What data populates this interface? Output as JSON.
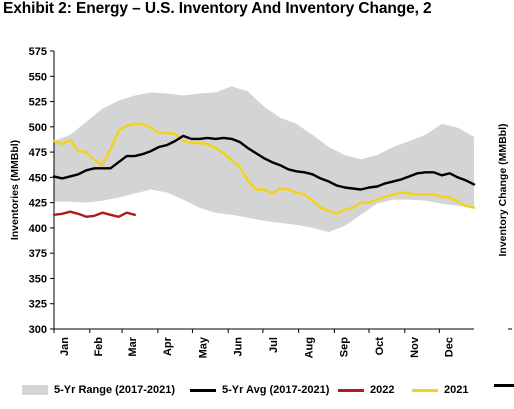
{
  "title": "Exhibit 2: Energy – U.S. Inventory And Inventory Change, 2",
  "colors": {
    "range_fill": "#d4d4d4",
    "avg_line": "#000000",
    "line_2022": "#b01c1c",
    "line_2021": "#f2d21a"
  },
  "chart_data": {
    "type": "line",
    "title": "",
    "ylabel": "Inventories (MMBbl)",
    "y2label": "Inventory Change (MMBbl)",
    "ylim": [
      300,
      575
    ],
    "yticks": [
      300,
      325,
      350,
      375,
      400,
      425,
      450,
      475,
      500,
      525,
      550,
      575
    ],
    "xlim": [
      0,
      52
    ],
    "months": [
      "Jan",
      "Feb",
      "Mar",
      "Apr",
      "May",
      "Jun",
      "Jul",
      "Aug",
      "Sep",
      "Oct",
      "Nov",
      "Dec"
    ],
    "month_positions": [
      0,
      4.43,
      8.43,
      12.86,
      17.14,
      21.57,
      25.86,
      30.29,
      34.71,
      39,
      43.43,
      47.71
    ],
    "grid": false,
    "legend_position": "bottom",
    "series": [
      {
        "name": "5-Yr Range (2017-2021)",
        "kind": "range",
        "x": [
          0,
          2,
          4,
          6,
          8,
          10,
          12,
          14,
          16,
          18,
          20,
          22,
          24,
          26,
          28,
          30,
          32,
          34,
          36,
          38,
          40,
          42,
          44,
          46,
          48,
          50,
          52
        ],
        "upper": [
          486,
          492,
          505,
          518,
          526,
          531,
          534,
          533,
          531,
          533,
          534,
          540,
          535,
          520,
          509,
          503,
          492,
          480,
          472,
          468,
          472,
          480,
          486,
          492,
          503,
          499,
          490
        ],
        "lower": [
          426,
          426,
          425,
          427,
          430,
          434,
          438,
          435,
          428,
          420,
          415,
          413,
          410,
          407,
          405,
          403,
          400,
          396,
          402,
          413,
          424,
          428,
          428,
          427,
          424,
          422,
          419
        ]
      },
      {
        "name": "5-Yr Avg (2017-2021)",
        "kind": "line",
        "x": [
          0,
          1,
          2,
          3,
          4,
          5,
          6,
          7,
          8,
          9,
          10,
          11,
          12,
          13,
          14,
          15,
          16,
          17,
          18,
          19,
          20,
          21,
          22,
          23,
          24,
          25,
          26,
          27,
          28,
          29,
          30,
          31,
          32,
          33,
          34,
          35,
          36,
          37,
          38,
          39,
          40,
          41,
          42,
          43,
          44,
          45,
          46,
          47,
          48,
          49,
          50,
          51,
          52
        ],
        "y": [
          451,
          449,
          451,
          453,
          457,
          459,
          459,
          459,
          465,
          471,
          471,
          473,
          476,
          480,
          482,
          486,
          491,
          488,
          488,
          489,
          488,
          489,
          488,
          485,
          479,
          474,
          469,
          465,
          462,
          458,
          456,
          455,
          453,
          449,
          446,
          442,
          440,
          439,
          438,
          440,
          441,
          444,
          446,
          448,
          451,
          454,
          455,
          455,
          452,
          454,
          450,
          447,
          443
        ]
      },
      {
        "name": "2022",
        "kind": "line",
        "x": [
          0,
          1,
          2,
          3,
          4,
          5,
          6,
          7,
          8,
          9,
          10
        ],
        "y": [
          413,
          414,
          416,
          414,
          411,
          412,
          415,
          413,
          411,
          415,
          413
        ]
      },
      {
        "name": "2021",
        "kind": "line",
        "x": [
          0,
          1,
          2,
          3,
          4,
          5,
          6,
          7,
          8,
          9,
          10,
          11,
          12,
          13,
          14,
          15,
          16,
          17,
          18,
          19,
          20,
          21,
          22,
          23,
          24,
          25,
          26,
          27,
          28,
          29,
          30,
          31,
          32,
          33,
          34,
          35,
          36,
          37,
          38,
          39,
          40,
          41,
          42,
          43,
          44,
          45,
          46,
          47,
          48,
          49,
          50,
          51,
          52
        ],
        "y": [
          486,
          483,
          487,
          476,
          475,
          467,
          462,
          478,
          496,
          501,
          503,
          503,
          499,
          494,
          494,
          493,
          486,
          484,
          484,
          483,
          479,
          474,
          467,
          460,
          447,
          438,
          438,
          434,
          439,
          438,
          435,
          433,
          427,
          420,
          417,
          414,
          418,
          420,
          425,
          425,
          428,
          431,
          433,
          435,
          434,
          433,
          433,
          433,
          431,
          430,
          426,
          422,
          420
        ]
      }
    ]
  }
}
